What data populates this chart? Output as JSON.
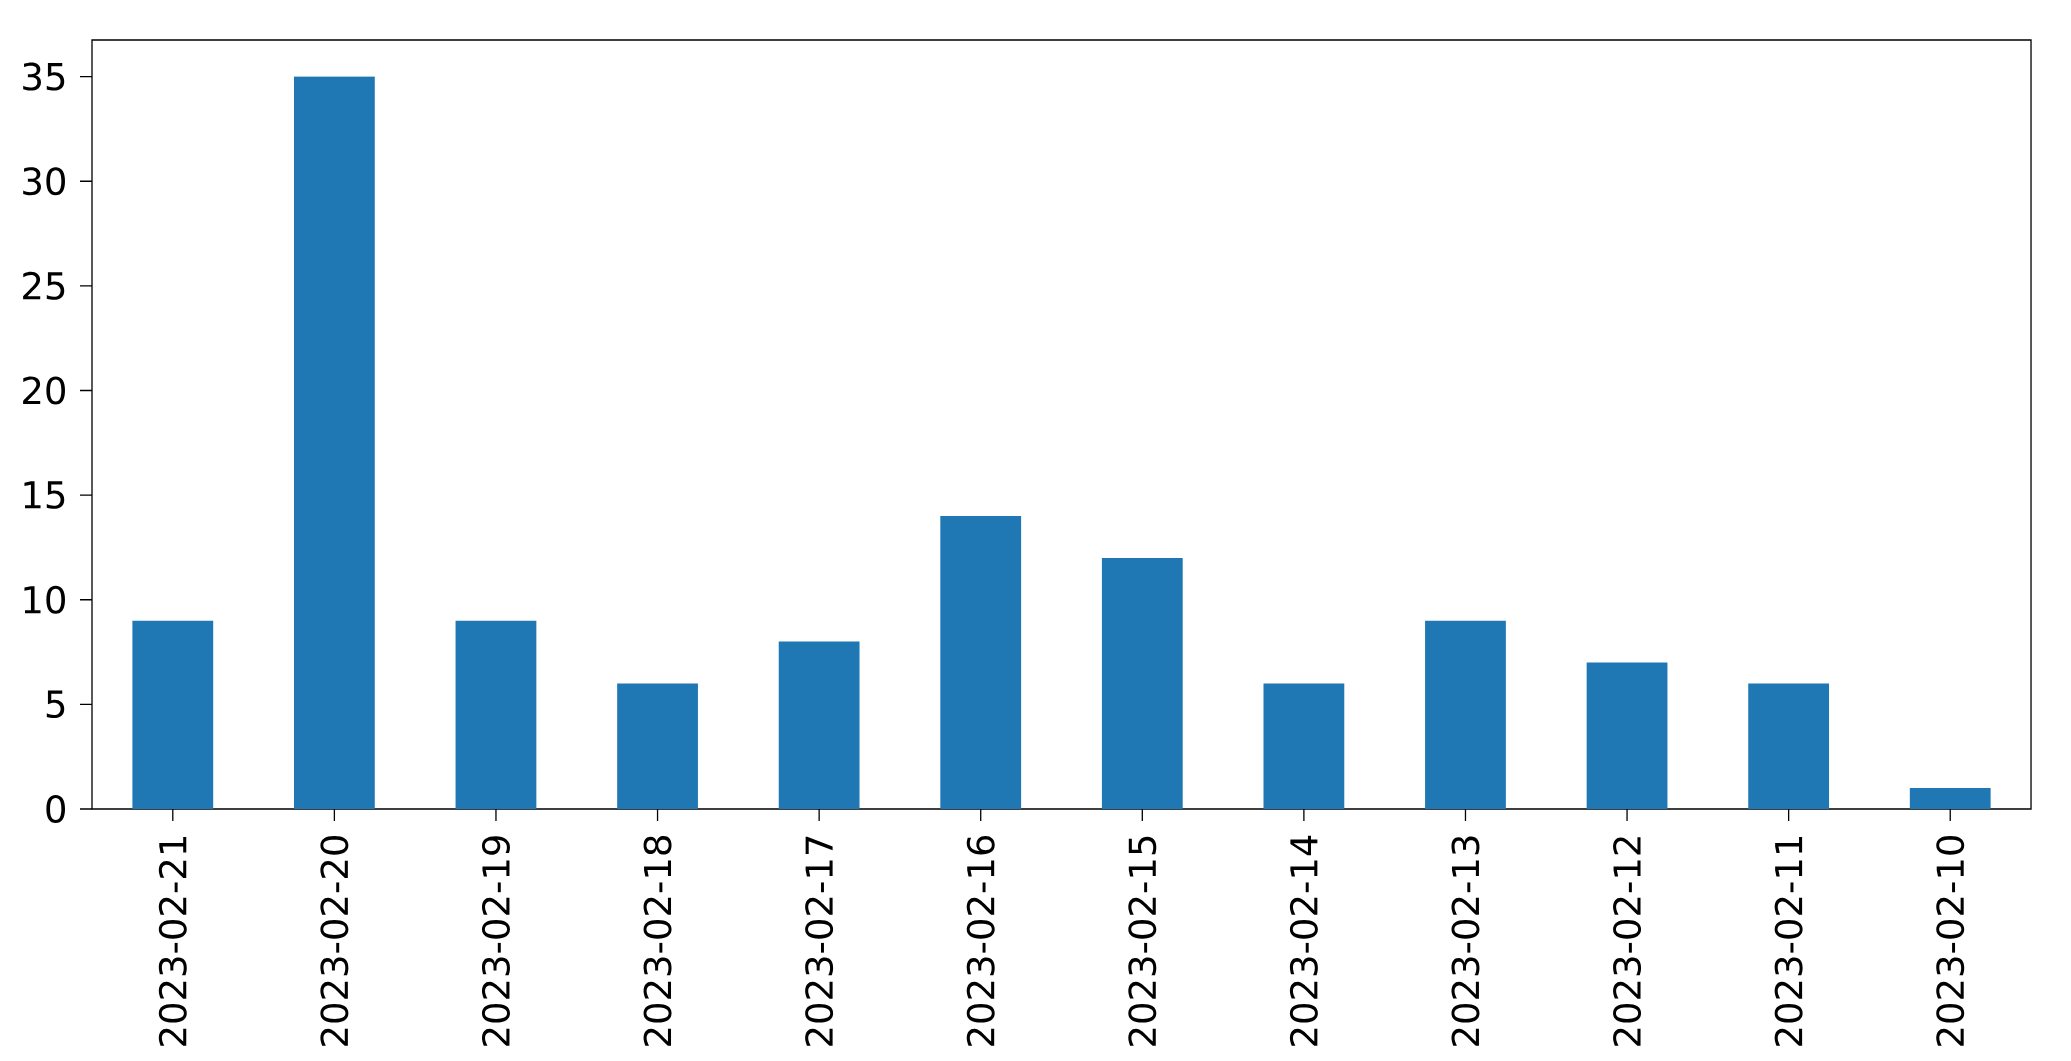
{
  "chart_data": {
    "type": "bar",
    "categories": [
      "2023-02-21",
      "2023-02-20",
      "2023-02-19",
      "2023-02-18",
      "2023-02-17",
      "2023-02-16",
      "2023-02-15",
      "2023-02-14",
      "2023-02-13",
      "2023-02-12",
      "2023-02-11",
      "2023-02-10"
    ],
    "values": [
      9,
      35,
      9,
      6,
      8,
      14,
      12,
      6,
      9,
      7,
      6,
      1
    ],
    "color": "#1f77b4",
    "ylim": [
      0,
      36.75
    ],
    "yticks": [
      0,
      5,
      10,
      15,
      20,
      25,
      30,
      35
    ],
    "grid": false
  }
}
